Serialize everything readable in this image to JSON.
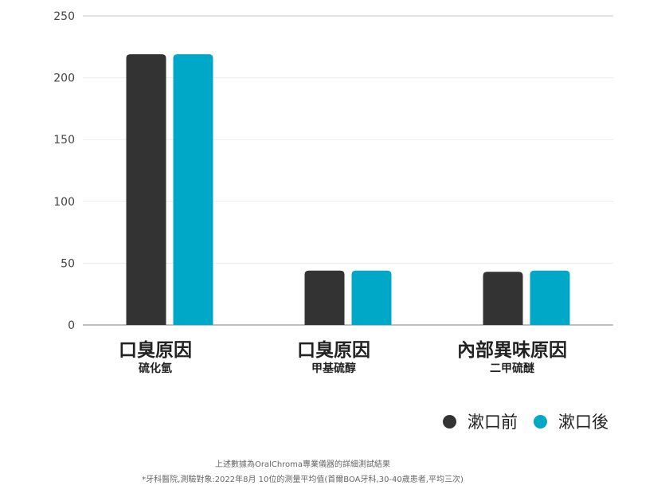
{
  "chart_data": {
    "type": "bar",
    "categories": [
      {
        "main": "口臭原因",
        "sub": "硫化氫"
      },
      {
        "main": "口臭原因",
        "sub": "甲基硫醇"
      },
      {
        "main": "內部異味原因",
        "sub": "二甲硫醚"
      }
    ],
    "series": [
      {
        "name": "漱口前",
        "color": "#333333",
        "values": [
          219,
          44,
          43
        ]
      },
      {
        "name": "漱口後",
        "color": "#00a8c8",
        "values": [
          219,
          44,
          44
        ]
      }
    ],
    "ylim": [
      0,
      250
    ],
    "yticks": [
      0,
      50,
      100,
      150,
      200,
      250
    ],
    "grid": true,
    "legend_position": "bottom-right"
  },
  "footnotes": {
    "line1": "上述數據為OralChroma專業儀器的詳細測試結果",
    "line2": "*牙科醫院,測驗對象:2022年8月  10位的測量平均值(首爾BOA牙科,30-40歲患者,平均三次)"
  }
}
